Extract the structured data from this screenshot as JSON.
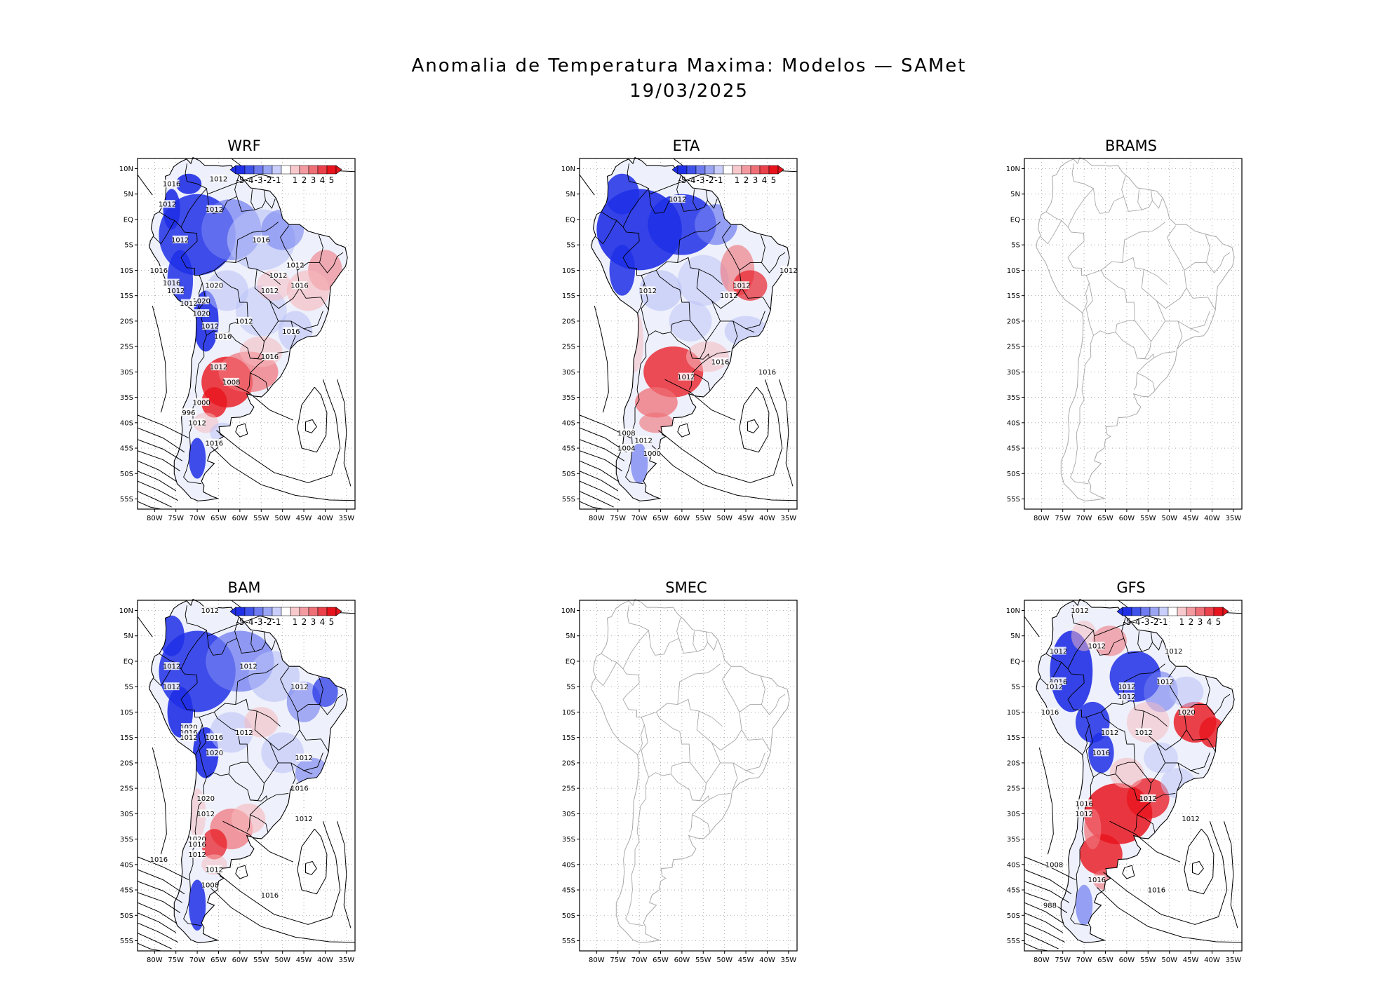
{
  "figure": {
    "title_line1": "Anomalia de Temperatura Maxima: Modelos — SAMet",
    "title_line2": "19/03/2025"
  },
  "colors": {
    "cold": "#1f2fe6",
    "cold_mid": "#6f7cf0",
    "cold_light": "#b9c1f7",
    "warm_light": "#f6b9bd",
    "warm_mid": "#ef6f76",
    "warm": "#e8141d",
    "coast_gray": "#a8a8a8",
    "contour": "#000000"
  },
  "axes": {
    "lat_labels": [
      "10N",
      "5N",
      "EQ",
      "5S",
      "10S",
      "15S",
      "20S",
      "25S",
      "30S",
      "35S",
      "40S",
      "45S",
      "50S",
      "55S"
    ],
    "lon_labels": [
      "80W",
      "75W",
      "70W",
      "65W",
      "60W",
      "55W",
      "50W",
      "45W",
      "40W",
      "35W"
    ]
  },
  "colorbar": {
    "labels": [
      "-5",
      "-4",
      "-3",
      "-2",
      "-1",
      "1",
      "2",
      "3",
      "4",
      "5"
    ]
  },
  "panels": [
    {
      "id": "wrf",
      "title": "WRF",
      "has_data": true,
      "isobar_labels": [
        "1016",
        "1012",
        "1012",
        "1012",
        "1012",
        "1020",
        "1016",
        "1016",
        "1012",
        "1020",
        "1012",
        "1020",
        "1016",
        "1012",
        "1012",
        "1012",
        "1012",
        "1016",
        "1016",
        "1012",
        "1016",
        "1016",
        "1012",
        "1008",
        "1000",
        "996",
        "1012",
        "1016"
      ]
    },
    {
      "id": "eta",
      "title": "ETA",
      "has_data": true,
      "isobar_labels": [
        "1012",
        "1012",
        "1012",
        "1012",
        "1016",
        "1012",
        "1012",
        "1016",
        "1008",
        "1012",
        "1004",
        "1000"
      ]
    },
    {
      "id": "brams",
      "title": "BRAMS",
      "has_data": false,
      "isobar_labels": []
    },
    {
      "id": "bam",
      "title": "BAM",
      "has_data": true,
      "isobar_labels": [
        "1012",
        "1012",
        "1012",
        "1012",
        "1012",
        "1020",
        "1016",
        "1012",
        "1016",
        "1012",
        "1020",
        "1012",
        "1020",
        "1016",
        "1012",
        "1020",
        "1016",
        "1012",
        "1016",
        "1012",
        "1008",
        "1012",
        "1016"
      ]
    },
    {
      "id": "smec",
      "title": "SMEC",
      "has_data": false,
      "isobar_labels": []
    },
    {
      "id": "gfs",
      "title": "GFS",
      "has_data": true,
      "isobar_labels": [
        "1012",
        "1012",
        "1012",
        "1016",
        "1012",
        "1016",
        "1012",
        "1012",
        "1012",
        "1012",
        "1012",
        "1012",
        "1020",
        "1016",
        "1016",
        "1012",
        "1012",
        "1008",
        "1016",
        "1012",
        "1016",
        "988"
      ]
    }
  ]
}
